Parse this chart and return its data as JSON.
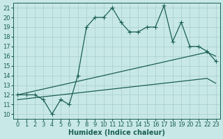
{
  "xlabel": "Humidex (Indice chaleur)",
  "xlim": [
    -0.5,
    23.5
  ],
  "ylim": [
    9.5,
    21.5
  ],
  "yticks": [
    10,
    11,
    12,
    13,
    14,
    15,
    16,
    17,
    18,
    19,
    20,
    21
  ],
  "xticks": [
    0,
    1,
    2,
    3,
    4,
    5,
    6,
    7,
    8,
    9,
    10,
    11,
    12,
    13,
    14,
    15,
    16,
    17,
    18,
    19,
    20,
    21,
    22,
    23
  ],
  "bg_color": "#c8e8e8",
  "grid_color": "#a8cccc",
  "line_color": "#1a5f50",
  "hours": [
    0,
    1,
    2,
    3,
    4,
    5,
    6,
    7,
    8,
    9,
    10,
    11,
    12,
    13,
    14,
    15,
    16,
    17,
    18,
    19,
    20,
    21,
    22,
    23
  ],
  "main_values": [
    12.0,
    12.0,
    12.0,
    11.5,
    10.0,
    11.5,
    11.0,
    14.0,
    19.0,
    20.0,
    20.0,
    21.0,
    19.5,
    18.5,
    18.5,
    19.0,
    19.0,
    21.2,
    17.5,
    19.5,
    17.0,
    17.0,
    16.5,
    15.5
  ],
  "upper_line": [
    12.0,
    12.2,
    12.4,
    12.6,
    12.8,
    13.0,
    13.2,
    13.4,
    13.6,
    13.8,
    14.0,
    14.2,
    14.4,
    14.6,
    14.8,
    15.0,
    15.2,
    15.4,
    15.6,
    15.8,
    16.0,
    16.2,
    16.4,
    16.0
  ],
  "lower_line": [
    11.5,
    11.6,
    11.7,
    11.8,
    11.9,
    12.0,
    12.1,
    12.2,
    12.3,
    12.4,
    12.5,
    12.6,
    12.7,
    12.8,
    12.9,
    13.0,
    13.1,
    13.2,
    13.3,
    13.4,
    13.5,
    13.6,
    13.7,
    13.2
  ],
  "fontsize_label": 7,
  "fontsize_tick": 6
}
